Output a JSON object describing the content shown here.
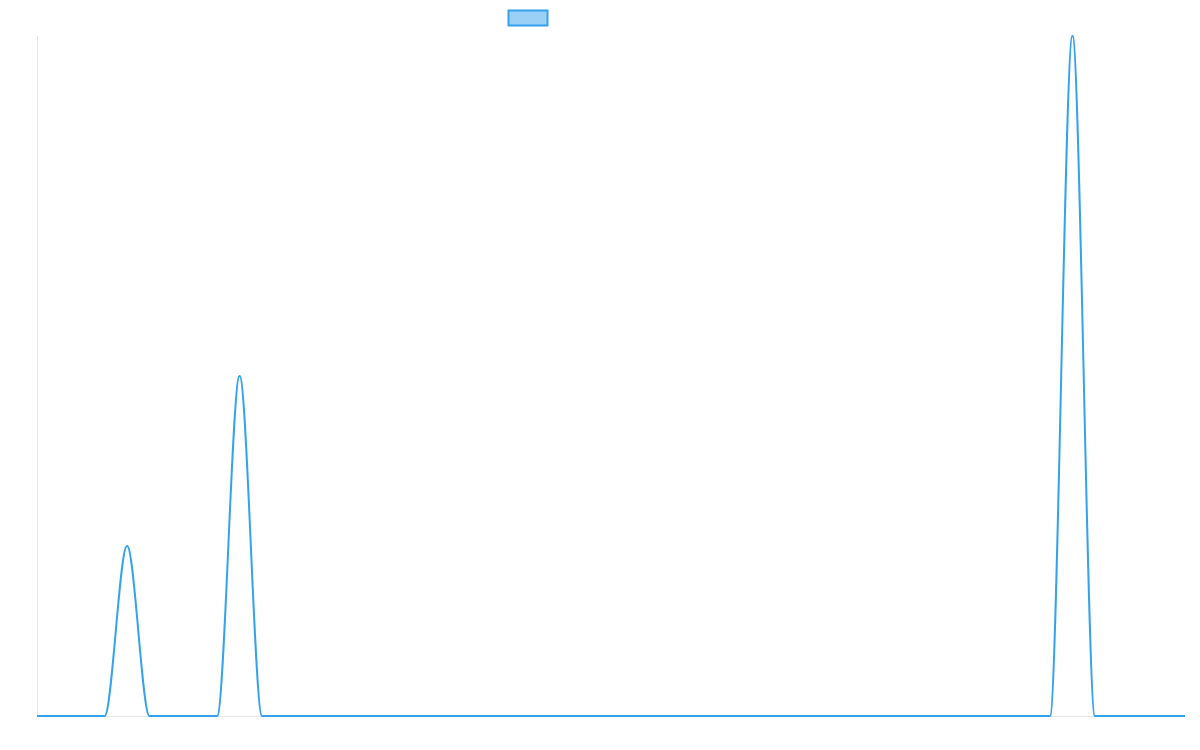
{
  "chart_data": {
    "type": "line",
    "title": "",
    "xlabel": "",
    "ylabel": "",
    "x": [
      0,
      1,
      2,
      3,
      4,
      5,
      6,
      7,
      8,
      9,
      10,
      11,
      12,
      13,
      14,
      15,
      16,
      17,
      18,
      19,
      20,
      21,
      22,
      23,
      24,
      25,
      26,
      27,
      28,
      29,
      30,
      31,
      32,
      33,
      34,
      35,
      36,
      37,
      38,
      39,
      40,
      41,
      42,
      43,
      44,
      45,
      46,
      47,
      48,
      49,
      50,
      51
    ],
    "series": [
      {
        "name": "",
        "values": [
          0,
          0,
          0,
          0,
          1,
          0,
          0,
          0,
          0,
          2,
          0,
          0,
          0,
          0,
          0,
          0,
          0,
          0,
          0,
          0,
          0,
          0,
          0,
          0,
          0,
          0,
          0,
          0,
          0,
          0,
          0,
          0,
          0,
          0,
          0,
          0,
          0,
          0,
          0,
          0,
          0,
          0,
          0,
          0,
          0,
          0,
          4,
          0,
          0,
          0,
          0,
          0
        ],
        "color": "#36a2eb",
        "fill_color": "#9ad0f5"
      }
    ],
    "ylim": [
      0,
      4
    ],
    "grid": false,
    "tick_labels_shown": false,
    "legend": "top"
  }
}
